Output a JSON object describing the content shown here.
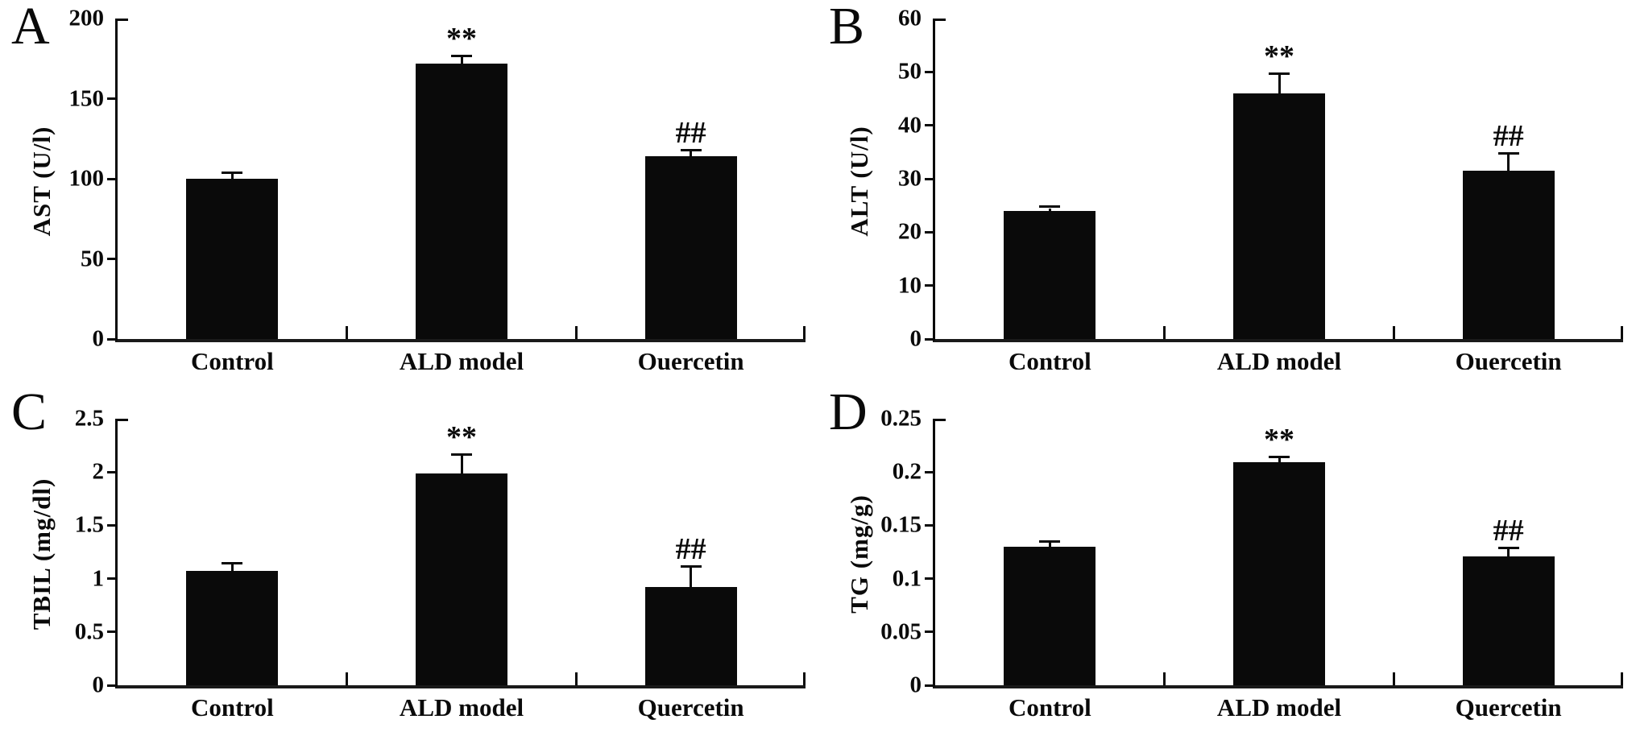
{
  "figure": {
    "background": "#ffffff",
    "bar_color": "#0a0a0a",
    "axis_color": "#0a0a0a",
    "groups": [
      "Control",
      "ALD model",
      "Quercetin"
    ],
    "significance_marks": {
      "vs_control": "**",
      "vs_model": "##"
    }
  },
  "chart_data": [
    {
      "type": "bar",
      "panel": "A",
      "ylabel": "AST (U/l)",
      "xlabel": "",
      "categories": [
        "Control",
        "ALD model",
        "Quercetin"
      ],
      "values": [
        100,
        172,
        114
      ],
      "errors": [
        3,
        4,
        3
      ],
      "annotations": [
        "",
        "**",
        "##"
      ],
      "ylim": [
        0,
        200
      ],
      "yticks": [
        0,
        50,
        100,
        150,
        200
      ],
      "ytick_labels": [
        "0",
        "50",
        "100",
        "150",
        "200"
      ],
      "grid": "off",
      "legend": "none"
    },
    {
      "type": "bar",
      "panel": "B",
      "ylabel": "ALT (U/l)",
      "xlabel": "",
      "categories": [
        "Control",
        "ALD model",
        "Quercetin"
      ],
      "values": [
        24,
        46,
        31.5
      ],
      "errors": [
        0.5,
        3.5,
        3
      ],
      "annotations": [
        "",
        "**",
        "##"
      ],
      "ylim": [
        0,
        60
      ],
      "yticks": [
        0,
        10,
        20,
        30,
        40,
        50,
        60
      ],
      "ytick_labels": [
        "0",
        "10",
        "20",
        "30",
        "40",
        "50",
        "60"
      ],
      "grid": "off",
      "legend": "none"
    },
    {
      "type": "bar",
      "panel": "C",
      "ylabel": "TBIL (mg/dl)",
      "xlabel": "",
      "categories": [
        "Control",
        "ALD model",
        "Quercetin"
      ],
      "values": [
        1.07,
        1.99,
        0.92
      ],
      "errors": [
        0.06,
        0.16,
        0.18
      ],
      "annotations": [
        "",
        "**",
        "##"
      ],
      "ylim": [
        0,
        2.5
      ],
      "yticks": [
        0,
        0.5,
        1,
        1.5,
        2,
        2.5
      ],
      "ytick_labels": [
        "0",
        "0.5",
        "1",
        "1.5",
        "2",
        "2.5"
      ],
      "grid": "off",
      "legend": "none"
    },
    {
      "type": "bar",
      "panel": "D",
      "ylabel": "TG (mg/g)",
      "xlabel": "",
      "categories": [
        "Control",
        "ALD model",
        "Quercetin"
      ],
      "values": [
        0.13,
        0.209,
        0.121
      ],
      "errors": [
        0.004,
        0.004,
        0.007
      ],
      "annotations": [
        "",
        "**",
        "##"
      ],
      "ylim": [
        0,
        0.25
      ],
      "yticks": [
        0,
        0.05,
        0.1,
        0.15,
        0.2,
        0.25
      ],
      "ytick_labels": [
        "0",
        "0.05",
        "0.1",
        "0.15",
        "0.2",
        "0.25"
      ],
      "grid": "off",
      "legend": "none"
    }
  ]
}
